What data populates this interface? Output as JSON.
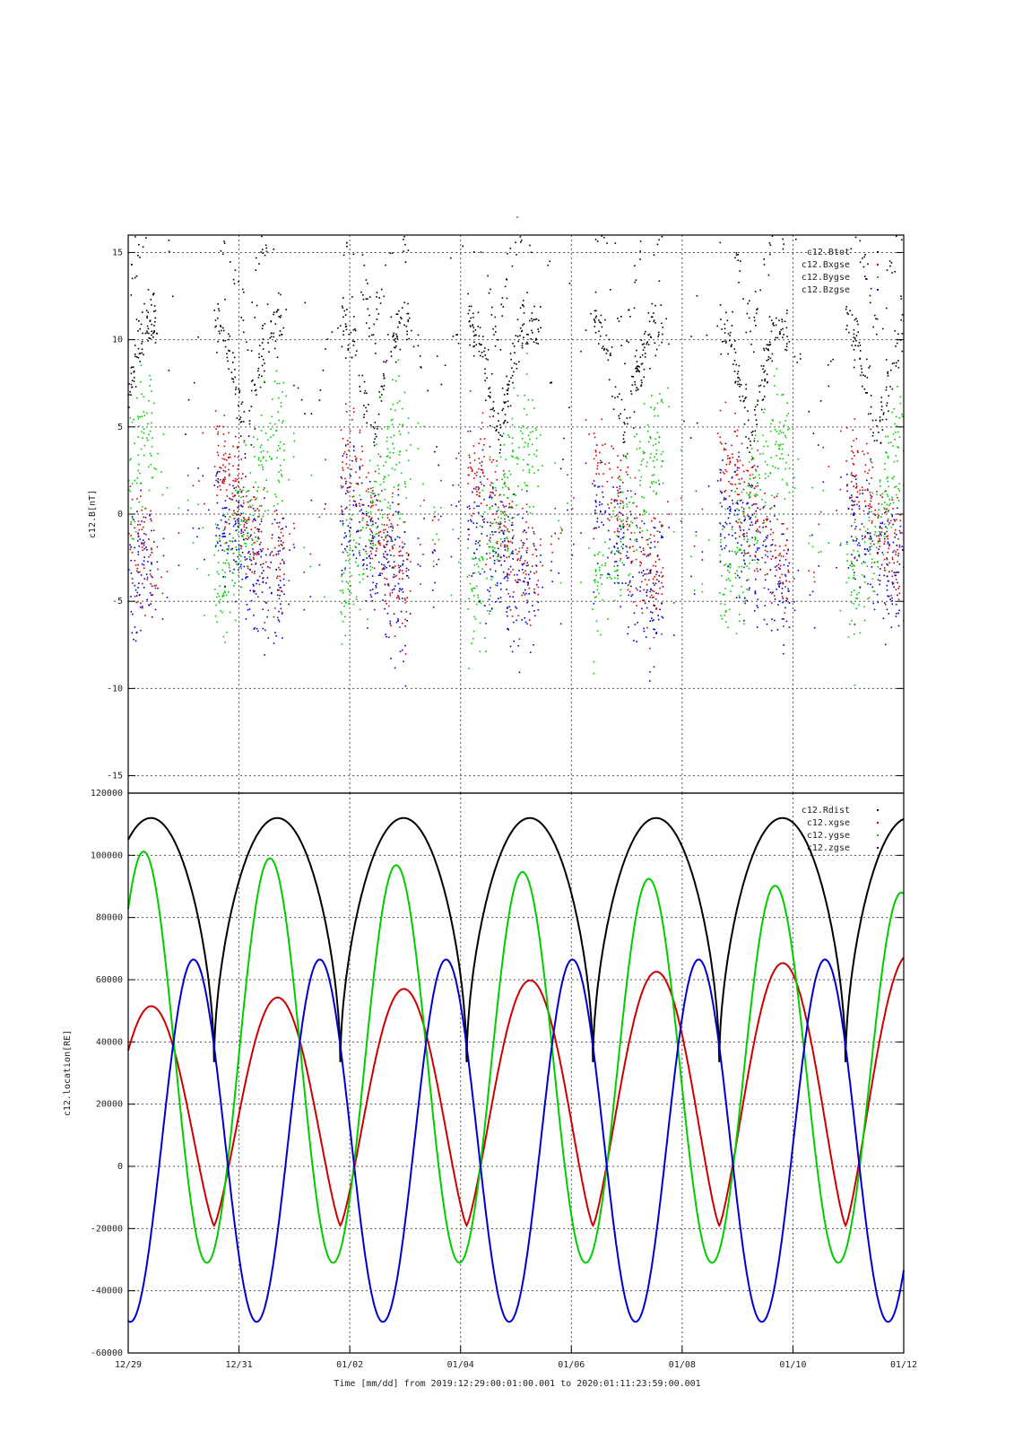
{
  "page_title": "-",
  "x_axis": {
    "caption": "Time [mm/dd]  from 2019:12:29:00:01:00.001  to  2020:01:11:23:59:00.001",
    "tick_labels": [
      "12/29",
      "12/31",
      "01/02",
      "01/04",
      "01/06",
      "01/08",
      "01/10",
      "01/12"
    ],
    "range_days": [
      0,
      14
    ]
  },
  "colors": {
    "black": "#000000",
    "red": "#cc0000",
    "green": "#00cc00",
    "blue": "#0000cc"
  },
  "chart_data": [
    {
      "type": "scatter",
      "ylabel": "c12.B[nT]",
      "ylim": [
        -16,
        16
      ],
      "y_ticks": [
        "15",
        "10",
        "5",
        "0",
        "-5",
        "-10",
        "-15"
      ],
      "grid": true,
      "legend_position": "top-right",
      "series": [
        {
          "name": "c12.Btot",
          "color": "#000000"
        },
        {
          "name": "c12.Bxgse",
          "color": "#cc0000"
        },
        {
          "name": "c12.Bygse",
          "color": "#00cc00"
        },
        {
          "name": "c12.Bzgse",
          "color": "#0000cc"
        }
      ],
      "note_values": "dense scatter of magnetic field samples; values span roughly -16 to 16 nT"
    },
    {
      "type": "line",
      "ylabel": "c12.location[RE]",
      "ylim": [
        -60000,
        120000
      ],
      "y_ticks": [
        "120000",
        "100000",
        "80000",
        "60000",
        "40000",
        "20000",
        "0",
        "-20000",
        "-40000",
        "-60000"
      ],
      "grid": true,
      "legend_position": "top-right",
      "period_days": 2.28,
      "series": [
        {
          "name": "c12.Rdist",
          "color": "#000000",
          "max": 112000,
          "min": 33500
        },
        {
          "name": "c12.xgse",
          "color": "#cc0000",
          "max_start": 51000,
          "max_end": 68000,
          "min": -19000
        },
        {
          "name": "c12.ygse",
          "color": "#00cc00",
          "max_start": 101500,
          "max_end": 88000,
          "min": -31000
        },
        {
          "name": "c12.zgse",
          "color": "#0000cc",
          "max": 66500,
          "min": -50000
        }
      ]
    }
  ]
}
